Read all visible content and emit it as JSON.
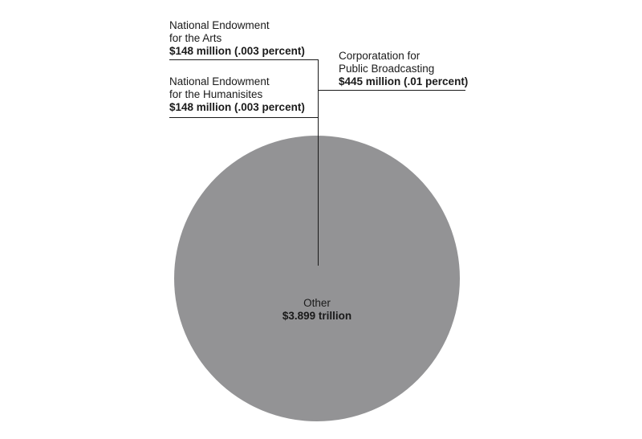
{
  "chart_data": {
    "type": "pie",
    "unit": "USD",
    "slices": [
      {
        "name_lines": [
          "National Endowment",
          "for the Arts"
        ],
        "value_label": "$148 million (.003 percent)",
        "value": 148000000,
        "percent": 0.003
      },
      {
        "name_lines": [
          "National Endowment",
          "for the Humanisites"
        ],
        "value_label": "$148 million (.003 percent)",
        "value": 148000000,
        "percent": 0.003
      },
      {
        "name_lines": [
          "Corporatation for",
          "Public Broadcasting"
        ],
        "value_label": "$445 million (.01 percent)",
        "value": 445000000,
        "percent": 0.01
      },
      {
        "name_lines": [
          "Other"
        ],
        "value_label": "$3.899 trillion",
        "value": 3899000000000,
        "color": "#939395"
      }
    ]
  }
}
